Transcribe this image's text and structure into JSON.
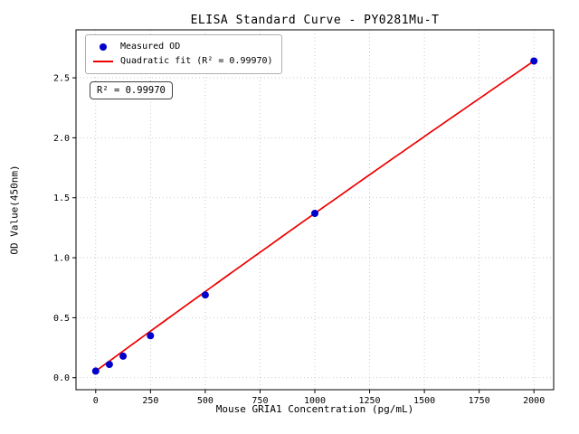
{
  "chart_data": {
    "type": "scatter",
    "title": "ELISA Standard Curve - PY0281Mu-T",
    "xlabel": "Mouse GRIA1 Concentration (pg/mL)",
    "ylabel": "OD Value(450nm)",
    "annotation": "R² = 0.99970",
    "r_squared": "0.99970",
    "legend": [
      {
        "label": "Measured OD",
        "marker": "dot"
      },
      {
        "label": "Quadratic fit (R² = 0.99970)",
        "marker": "line"
      }
    ],
    "legend_position": "upper left",
    "x": [
      0,
      62.5,
      125,
      250,
      500,
      1000,
      2000
    ],
    "y": [
      0.055,
      0.11,
      0.18,
      0.35,
      0.69,
      1.37,
      2.64
    ],
    "fit": {
      "type": "quadratic",
      "a": 0.055,
      "b": 0.0013375,
      "c": -2.25e-08
    },
    "fit_range": [
      0,
      2000
    ],
    "xticks": [
      0,
      250,
      500,
      750,
      1000,
      1250,
      1500,
      1750,
      2000
    ],
    "yticks": [
      "0.0",
      "0.5",
      "1.0",
      "1.5",
      "2.0",
      "2.5"
    ],
    "xlim": [
      -90,
      2090
    ],
    "ylim": [
      -0.1,
      2.9
    ],
    "grid": true,
    "point_color": "#0000cc",
    "line_color": "#ee0000",
    "grid_color": "#bcbcbc",
    "axis_color": "#000000"
  }
}
